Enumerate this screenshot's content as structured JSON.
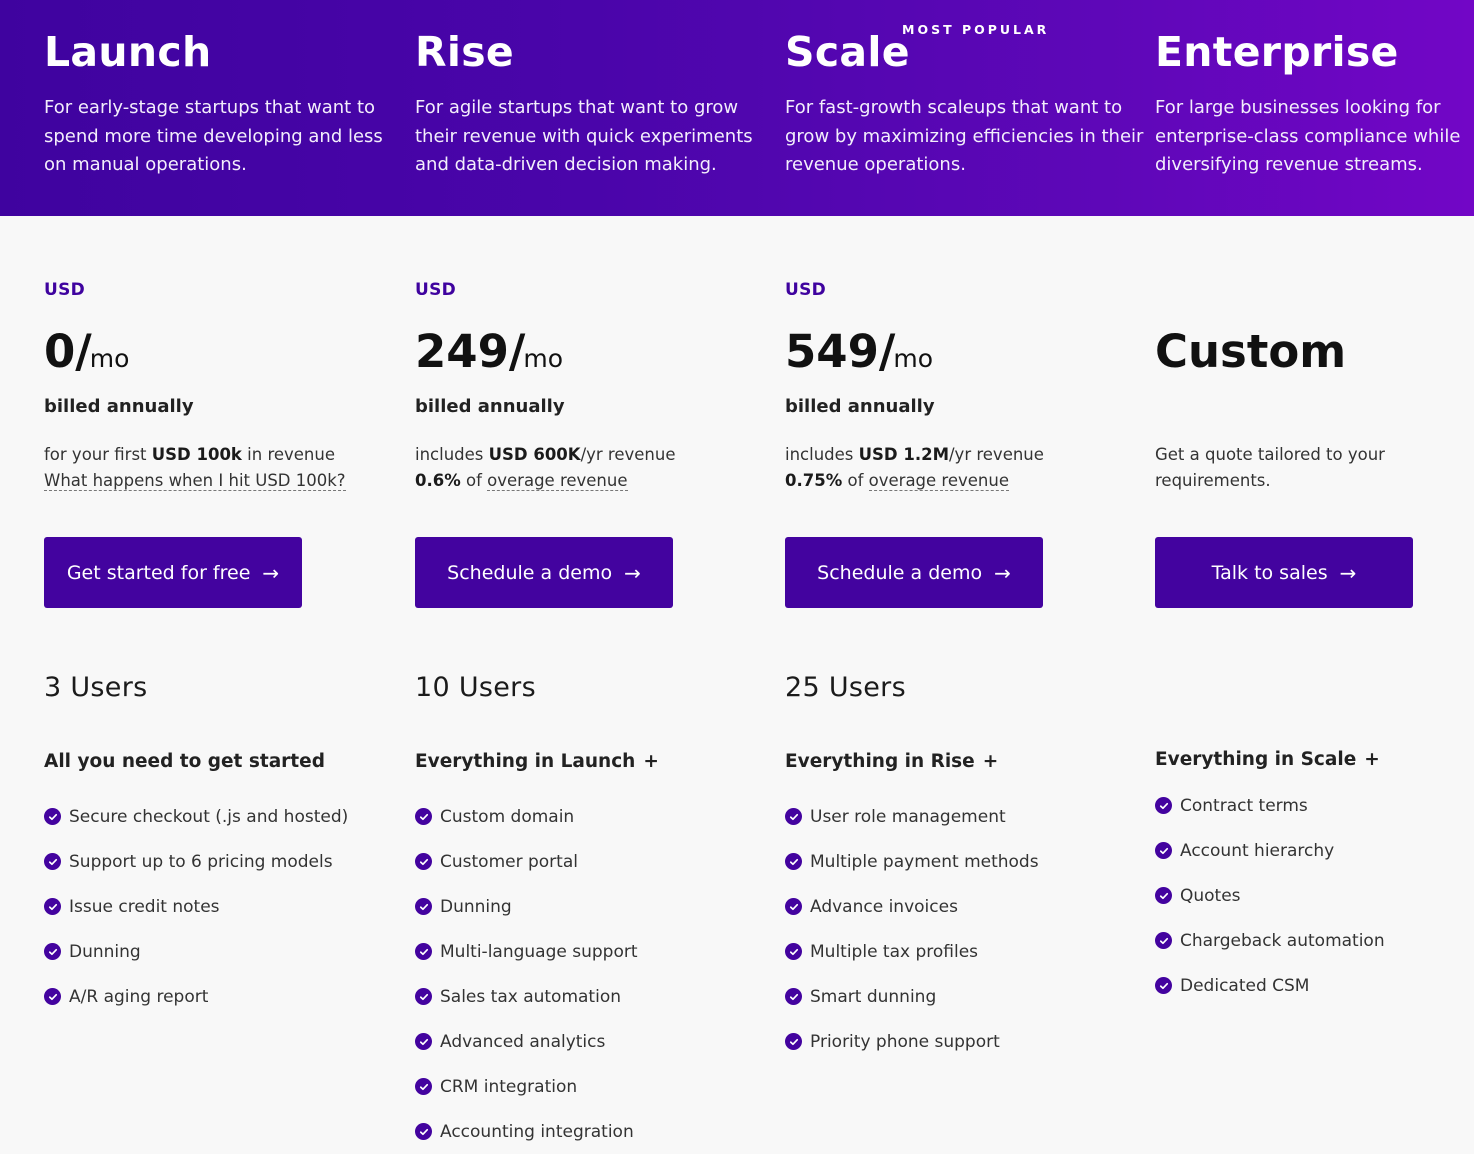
{
  "badge": "MOST POPULAR",
  "plans": [
    {
      "title": "Launch",
      "description": "For early-stage startups that want to spend more time developing and less on manual operations.",
      "currency": "USD",
      "price": "0/",
      "per": "mo",
      "billed": "billed annually",
      "note_line1_pre": "for your first ",
      "note_line1_bold": "USD 100k",
      "note_line1_post": " in revenue",
      "note_line2_bold": "",
      "note_line2_pre": "",
      "note_line2_link": "What happens when I hit USD 100k?",
      "cta": "Get started for free",
      "users": "3 Users",
      "features_heading": "All you need to get started",
      "features_plus": "",
      "features": [
        "Secure checkout (.js and hosted)",
        "Support up to 6 pricing models",
        "Issue credit notes",
        "Dunning",
        "A/R aging report"
      ]
    },
    {
      "title": "Rise",
      "description": "For agile startups that want to grow their revenue with quick experiments and data-driven decision making.",
      "currency": "USD",
      "price": "249/",
      "per": "mo",
      "billed": "billed annually",
      "note_line1_pre": "includes ",
      "note_line1_bold": "USD 600K",
      "note_line1_post": "/yr revenue",
      "note_line2_bold": "0.6%",
      "note_line2_pre": " of ",
      "note_line2_link": "overage revenue",
      "cta": "Schedule a demo",
      "users": "10 Users",
      "features_heading": "Everything in Launch",
      "features_plus": "+",
      "features": [
        "Custom domain",
        "Customer portal",
        "Dunning",
        "Multi-language support",
        "Sales tax automation",
        "Advanced analytics",
        "CRM integration",
        "Accounting integration"
      ]
    },
    {
      "title": "Scale",
      "description": "For fast-growth scaleups that want to grow by maximizing efficiencies in their revenue operations.",
      "currency": "USD",
      "price": "549/",
      "per": "mo",
      "billed": "billed annually",
      "note_line1_pre": "includes ",
      "note_line1_bold": "USD 1.2M",
      "note_line1_post": "/yr revenue",
      "note_line2_bold": "0.75%",
      "note_line2_pre": " of ",
      "note_line2_link": "overage revenue",
      "cta": "Schedule a demo",
      "users": "25 Users",
      "features_heading": "Everything in Rise",
      "features_plus": "+",
      "features": [
        "User role management",
        "Multiple payment methods",
        "Advance invoices",
        "Multiple tax profiles",
        "Smart dunning",
        "Priority phone support"
      ]
    },
    {
      "title": "Enterprise",
      "description": "For large businesses looking for enterprise-class compliance while diversifying revenue streams.",
      "currency": "",
      "price": "Custom",
      "per": "",
      "billed": "",
      "note_text": "Get a quote tailored to your requirements.",
      "cta": "Talk to sales",
      "users": "",
      "features_heading": "Everything in Scale",
      "features_plus": "+",
      "features": [
        "Contract terms",
        "Account hierarchy",
        "Quotes",
        "Chargeback automation",
        "Dedicated CSM"
      ]
    }
  ],
  "icons": {
    "check": "check-circle-icon",
    "arrow": "arrow-right-icon"
  },
  "colors": {
    "brand": "#43039f",
    "hero_start": "#3f039f",
    "hero_end": "#7206c6"
  }
}
